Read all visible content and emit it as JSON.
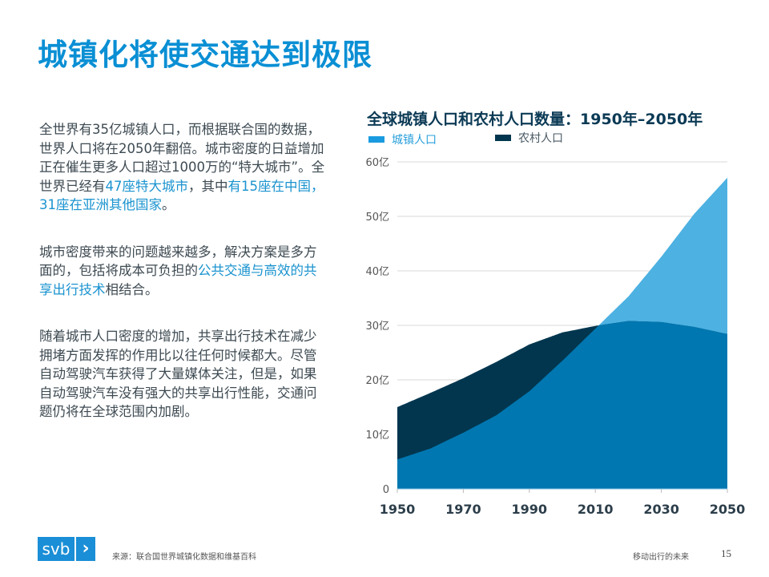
{
  "title": "城镇化将使交通达到极限",
  "paragraphs": [
    [
      {
        "t": "全世界有35亿城镇人口，而根据联合国的数据，世界人口将在2050年翻倍。城市密度的日益增加正在催生更多人口超过1000万的“特大城市”。全世界已经有",
        "hl": false
      },
      {
        "t": "47座特大城市",
        "hl": true
      },
      {
        "t": "，其中",
        "hl": false
      },
      {
        "t": "有15座在中国，31座在亚洲其他国家",
        "hl": true
      },
      {
        "t": "。",
        "hl": false
      }
    ],
    [
      {
        "t": "城市密度带来的问题越来越多，解决方案是多方面的，包括将成本可负担的",
        "hl": false
      },
      {
        "t": "公共交通与高效的共享出行技术",
        "hl": true
      },
      {
        "t": "相结合。",
        "hl": false
      }
    ],
    [
      {
        "t": "随着城市人口密度的增加，共享出行技术在减少拥堵方面发挥的作用比以往任何时候都大。尽管自动驾驶汽车获得了大量媒体关注，但是，如果自动驾驶汽车没有强大的共享出行性能，交通问题仍将在全球范围内加剧。",
        "hl": false
      }
    ]
  ],
  "chart_data": {
    "type": "area",
    "title": "全球城镇人口和农村人口数量：1950年–2050年",
    "x": [
      1950,
      1960,
      1970,
      1980,
      1990,
      2000,
      2010,
      2020,
      2030,
      2040,
      2050
    ],
    "series": [
      {
        "name": "城镇人口",
        "color": "#4db1e2",
        "values": [
          5.4,
          7.4,
          10.3,
          13.5,
          17.9,
          23.5,
          29.4,
          35.3,
          42.6,
          50.5,
          57.1
        ]
      },
      {
        "name": "农村人口",
        "color": "#02364f",
        "values": [
          15.0,
          17.6,
          20.3,
          23.3,
          26.5,
          28.7,
          29.9,
          30.8,
          30.6,
          29.7,
          28.4
        ]
      }
    ],
    "overlap_color": "#0077b0",
    "ylim": [
      0,
      60
    ],
    "yticks": [
      0,
      10,
      20,
      30,
      40,
      50,
      60
    ],
    "ytick_labels": [
      "0",
      "10亿",
      "20亿",
      "30亿",
      "40亿",
      "50亿",
      "60亿"
    ],
    "xticks": [
      1950,
      1970,
      1990,
      2010,
      2030,
      2050
    ],
    "xtick_labels": [
      "1950",
      "1970",
      "1990",
      "2010",
      "2030",
      "2050"
    ],
    "grid": true,
    "legend_position": "top-left"
  },
  "footer": {
    "logo": "svb",
    "source": "来源：联合国世界城镇化数据和维基百科",
    "section": "移动出行的未来",
    "page": "15"
  }
}
